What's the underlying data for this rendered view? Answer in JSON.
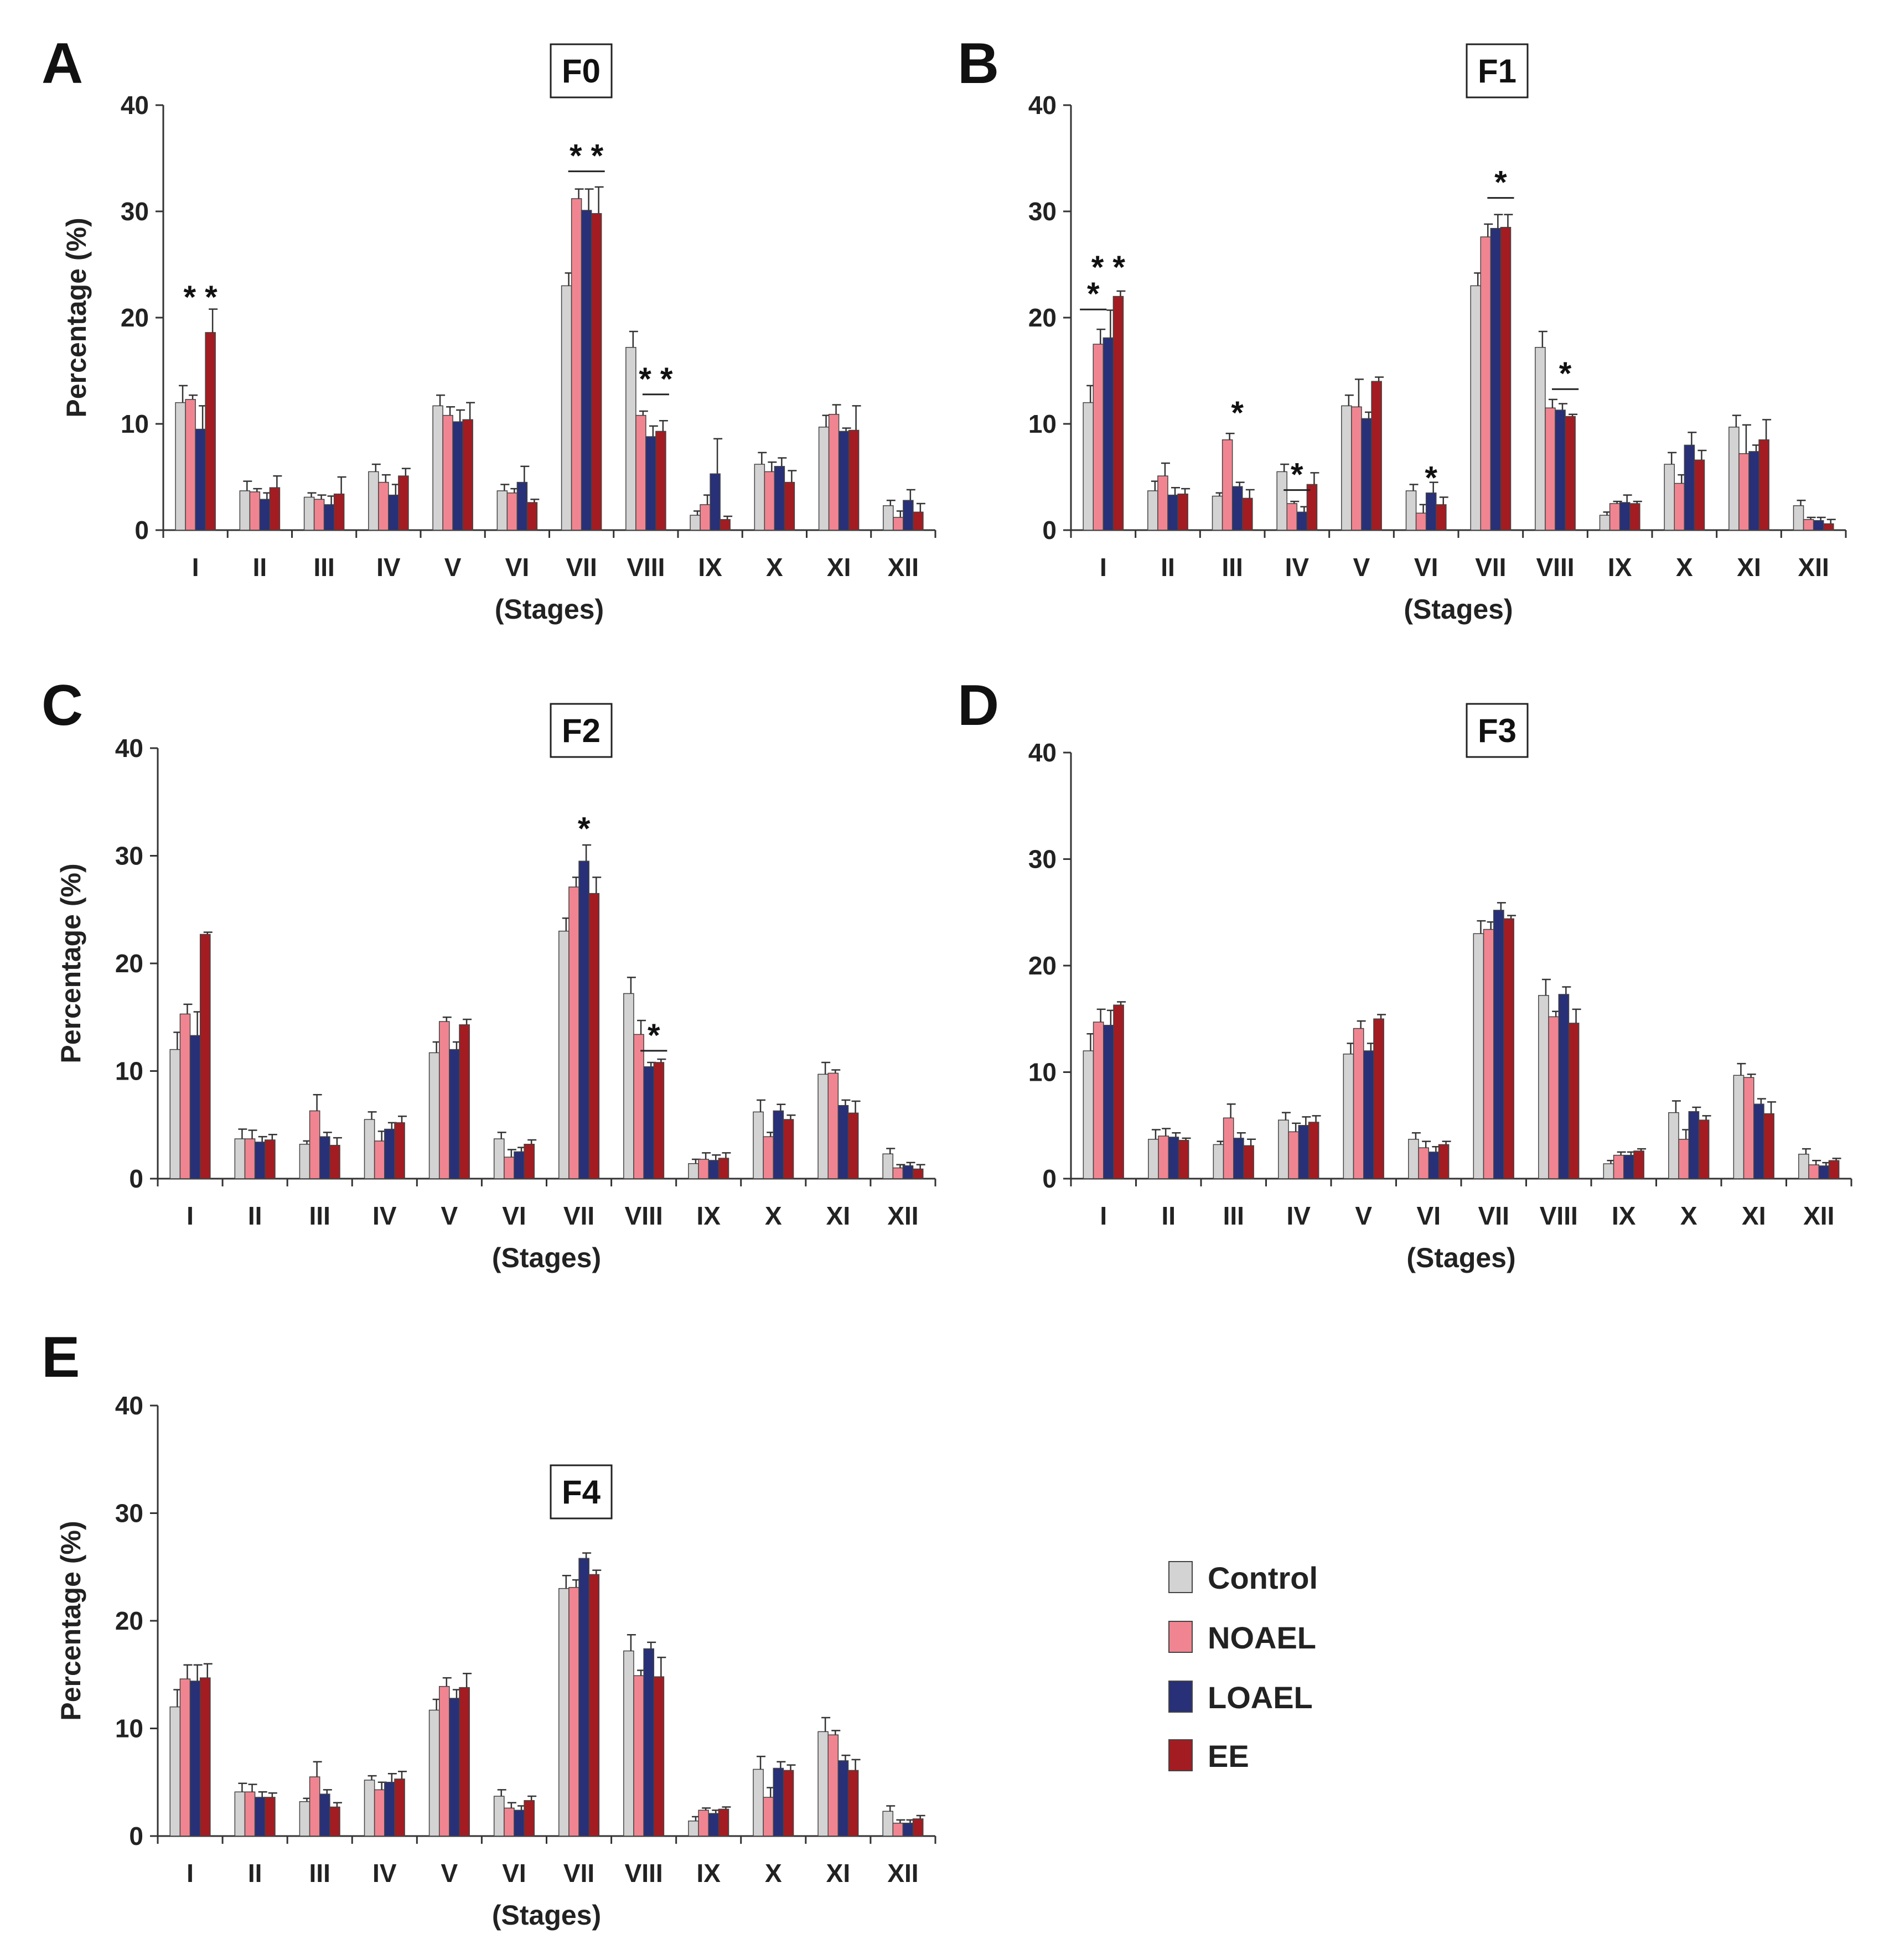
{
  "legend": [
    {
      "name": "Control",
      "color": "#d3d3d3"
    },
    {
      "name": "NOAEL",
      "color": "#f08591"
    },
    {
      "name": "LOAEL",
      "color": "#283078"
    },
    {
      "name": "EE",
      "color": "#a31c22"
    }
  ],
  "chart_data": [
    {
      "panel": "A",
      "title": "F0",
      "type": "bar",
      "ylabel": "Percentage (%)",
      "xlabel": "(Stages)",
      "ylim": [
        0,
        40
      ],
      "yticks": [
        0,
        10,
        20,
        30,
        40
      ],
      "categories": [
        "I",
        "II",
        "III",
        "IV",
        "V",
        "VI",
        "VII",
        "VIII",
        "IX",
        "X",
        "XI",
        "XII"
      ],
      "series": [
        {
          "name": "Control",
          "values": [
            12.0,
            3.7,
            3.1,
            5.5,
            11.7,
            3.7,
            23.0,
            17.2,
            1.4,
            6.2,
            9.7,
            2.3
          ],
          "errors": [
            1.6,
            0.9,
            0.4,
            0.7,
            1.0,
            0.6,
            1.2,
            1.5,
            0.4,
            1.1,
            1.1,
            0.5
          ]
        },
        {
          "name": "NOAEL",
          "values": [
            12.3,
            3.6,
            2.9,
            4.5,
            10.8,
            3.5,
            31.2,
            10.8,
            2.4,
            5.5,
            10.9,
            1.2
          ],
          "errors": [
            0.4,
            0.3,
            0.4,
            0.7,
            0.8,
            0.4,
            0.9,
            0.4,
            0.9,
            0.9,
            0.9,
            0.6
          ]
        },
        {
          "name": "LOAEL",
          "values": [
            9.5,
            2.9,
            2.4,
            3.3,
            10.2,
            4.5,
            30.1,
            8.8,
            5.3,
            6.0,
            9.3,
            2.8
          ],
          "errors": [
            2.2,
            0.6,
            0.8,
            1.0,
            1.1,
            1.5,
            2.0,
            1.0,
            3.3,
            0.8,
            0.3,
            1.0
          ]
        },
        {
          "name": "EE",
          "values": [
            18.6,
            4.0,
            3.4,
            5.1,
            10.4,
            2.6,
            29.8,
            9.3,
            1.0,
            4.5,
            9.4,
            1.7
          ],
          "errors": [
            2.2,
            1.1,
            1.6,
            0.7,
            1.6,
            0.3,
            2.5,
            1.0,
            0.3,
            1.1,
            2.3,
            0.8
          ]
        }
      ],
      "annotations": [
        {
          "category": "I",
          "text": "* *",
          "bar_from": null,
          "bar_to": null,
          "y": 21.2
        },
        {
          "category": "VII",
          "text": "* *",
          "bar_from": 1,
          "bar_to": 3,
          "y": 34.5
        },
        {
          "category": "VIII",
          "text": "* *",
          "bar_from": 2,
          "bar_to": 3,
          "y": 13.5
        }
      ]
    },
    {
      "panel": "B",
      "title": "F1",
      "type": "bar",
      "ylabel": "",
      "xlabel": "(Stages)",
      "ylim": [
        0,
        40
      ],
      "yticks": [
        0,
        10,
        20,
        30,
        40
      ],
      "categories": [
        "I",
        "II",
        "III",
        "IV",
        "V",
        "VI",
        "VII",
        "VIII",
        "IX",
        "X",
        "XI",
        "XII"
      ],
      "series": [
        {
          "name": "Control",
          "values": [
            12.0,
            3.7,
            3.2,
            5.5,
            11.7,
            3.7,
            23.0,
            17.2,
            1.4,
            6.2,
            9.7,
            2.3
          ],
          "errors": [
            1.6,
            0.9,
            0.3,
            0.7,
            1.0,
            0.6,
            1.2,
            1.5,
            0.3,
            1.1,
            1.1,
            0.5
          ]
        },
        {
          "name": "NOAEL",
          "values": [
            17.5,
            5.1,
            8.5,
            2.5,
            11.6,
            1.6,
            27.6,
            11.5,
            2.5,
            4.4,
            7.2,
            1.0
          ],
          "errors": [
            1.4,
            1.2,
            0.6,
            0.2,
            2.6,
            0.8,
            1.2,
            0.8,
            0.2,
            0.8,
            2.7,
            0.2
          ]
        },
        {
          "name": "LOAEL",
          "values": [
            18.1,
            3.3,
            4.1,
            1.7,
            10.5,
            3.5,
            28.4,
            11.3,
            2.6,
            8.0,
            7.4,
            0.9
          ],
          "errors": [
            2.6,
            0.7,
            0.4,
            0.5,
            0.6,
            1.0,
            1.3,
            0.6,
            0.7,
            1.2,
            0.6,
            0.3
          ]
        },
        {
          "name": "EE",
          "values": [
            22.0,
            3.4,
            3.0,
            4.3,
            14.0,
            2.4,
            28.5,
            10.7,
            2.5,
            6.6,
            8.5,
            0.6
          ],
          "errors": [
            0.5,
            0.5,
            0.8,
            1.1,
            0.4,
            0.7,
            1.2,
            0.2,
            0.2,
            0.9,
            1.9,
            0.4
          ]
        }
      ],
      "annotations": [
        {
          "category": "I",
          "text": "*",
          "bar_from": 0,
          "bar_to": 1,
          "y": 21.5
        },
        {
          "category": "I",
          "text": "* *",
          "bar_from": null,
          "bar_to": null,
          "y": 24.0
        },
        {
          "category": "III",
          "text": "*",
          "bar_from": null,
          "bar_to": null,
          "y": 10.3
        },
        {
          "category": "IV",
          "text": "*",
          "bar_from": 1,
          "bar_to": 2,
          "y": 4.5
        },
        {
          "category": "VI",
          "text": "*",
          "bar_from": null,
          "bar_to": null,
          "y": 4.2
        },
        {
          "category": "VII",
          "text": "*",
          "bar_from": 2,
          "bar_to": 3,
          "y": 32.0
        },
        {
          "category": "VIII",
          "text": "*",
          "bar_from": 2,
          "bar_to": 3,
          "y": 14.0
        }
      ]
    },
    {
      "panel": "C",
      "title": "F2",
      "type": "bar",
      "ylabel": "Percentage (%)",
      "xlabel": "(Stages)",
      "ylim": [
        0,
        40
      ],
      "yticks": [
        0,
        10,
        20,
        30,
        40
      ],
      "categories": [
        "I",
        "II",
        "III",
        "IV",
        "V",
        "VI",
        "VII",
        "VIII",
        "IX",
        "X",
        "XI",
        "XII"
      ],
      "series": [
        {
          "name": "Control",
          "values": [
            12.0,
            3.7,
            3.2,
            5.5,
            11.7,
            3.7,
            23.0,
            17.2,
            1.4,
            6.2,
            9.7,
            2.3
          ],
          "errors": [
            1.6,
            0.9,
            0.3,
            0.7,
            1.0,
            0.6,
            1.2,
            1.5,
            0.4,
            1.1,
            1.1,
            0.5
          ]
        },
        {
          "name": "NOAEL",
          "values": [
            15.3,
            3.7,
            6.3,
            3.5,
            14.6,
            2.0,
            27.1,
            13.4,
            1.8,
            3.9,
            9.8,
            1.0
          ],
          "errors": [
            0.9,
            0.8,
            1.5,
            0.9,
            0.4,
            0.7,
            0.9,
            1.3,
            0.6,
            0.4,
            0.3,
            0.3
          ]
        },
        {
          "name": "LOAEL",
          "values": [
            13.3,
            3.4,
            3.9,
            4.6,
            12.0,
            2.5,
            29.5,
            10.4,
            1.7,
            6.3,
            6.8,
            1.2
          ],
          "errors": [
            2.2,
            0.5,
            0.4,
            0.6,
            0.7,
            0.4,
            1.5,
            0.4,
            0.5,
            0.6,
            0.5,
            0.3
          ]
        },
        {
          "name": "EE",
          "values": [
            22.7,
            3.6,
            3.1,
            5.2,
            14.3,
            3.2,
            26.5,
            10.8,
            1.9,
            5.5,
            6.1,
            0.9
          ],
          "errors": [
            0.2,
            0.5,
            0.7,
            0.6,
            0.5,
            0.4,
            1.5,
            0.3,
            0.5,
            0.4,
            1.1,
            0.4
          ]
        }
      ],
      "annotations": [
        {
          "category": "VII",
          "text": "*",
          "bar_from": null,
          "bar_to": null,
          "y": 31.8
        },
        {
          "category": "VIII",
          "text": "*",
          "bar_from": 2,
          "bar_to": 3,
          "y": 12.6
        }
      ]
    },
    {
      "panel": "D",
      "title": "F3",
      "type": "bar",
      "ylabel": "",
      "xlabel": "(Stages)",
      "ylim": [
        0,
        40
      ],
      "yticks": [
        0,
        10,
        20,
        30,
        40
      ],
      "categories": [
        "I",
        "II",
        "III",
        "IV",
        "V",
        "VI",
        "VII",
        "VIII",
        "IX",
        "X",
        "XI",
        "XII"
      ],
      "series": [
        {
          "name": "Control",
          "values": [
            12.0,
            3.7,
            3.2,
            5.5,
            11.7,
            3.7,
            23.0,
            17.2,
            1.4,
            6.2,
            9.7,
            2.3
          ],
          "errors": [
            1.6,
            0.9,
            0.3,
            0.7,
            1.0,
            0.6,
            1.2,
            1.5,
            0.3,
            1.1,
            1.1,
            0.5
          ]
        },
        {
          "name": "NOAEL",
          "values": [
            14.7,
            4.0,
            5.7,
            4.4,
            14.1,
            2.9,
            23.4,
            15.2,
            2.2,
            3.7,
            9.5,
            1.3
          ],
          "errors": [
            1.2,
            0.7,
            1.3,
            0.8,
            0.7,
            0.6,
            0.7,
            0.5,
            0.3,
            0.9,
            0.3,
            0.4
          ]
        },
        {
          "name": "LOAEL",
          "values": [
            14.4,
            3.9,
            3.8,
            5.0,
            12.0,
            2.5,
            25.2,
            17.3,
            2.2,
            6.3,
            7.0,
            1.2
          ],
          "errors": [
            1.4,
            0.4,
            0.5,
            0.8,
            0.7,
            0.5,
            0.7,
            0.7,
            0.3,
            0.4,
            0.5,
            0.3
          ]
        },
        {
          "name": "EE",
          "values": [
            16.3,
            3.6,
            3.1,
            5.3,
            15.0,
            3.2,
            24.4,
            14.6,
            2.6,
            5.5,
            6.1,
            1.7
          ],
          "errors": [
            0.3,
            0.2,
            0.6,
            0.6,
            0.4,
            0.3,
            0.3,
            1.3,
            0.2,
            0.4,
            1.1,
            0.2
          ]
        }
      ],
      "annotations": []
    },
    {
      "panel": "E",
      "title": "F4",
      "type": "bar",
      "ylabel": "Percentage (%)",
      "xlabel": "(Stages)",
      "ylim": [
        0,
        40
      ],
      "yticks": [
        0,
        10,
        20,
        30,
        40
      ],
      "categories": [
        "I",
        "II",
        "III",
        "IV",
        "V",
        "VI",
        "VII",
        "VIII",
        "IX",
        "X",
        "XI",
        "XII"
      ],
      "series": [
        {
          "name": "Control",
          "values": [
            12.0,
            4.1,
            3.2,
            5.2,
            11.7,
            3.7,
            23.0,
            17.2,
            1.4,
            6.2,
            9.7,
            2.3
          ],
          "errors": [
            1.6,
            0.8,
            0.3,
            0.4,
            1.0,
            0.6,
            1.2,
            1.5,
            0.4,
            1.2,
            1.3,
            0.5
          ]
        },
        {
          "name": "NOAEL",
          "values": [
            14.6,
            4.1,
            5.5,
            4.3,
            13.9,
            2.6,
            23.1,
            14.9,
            2.4,
            3.6,
            9.4,
            1.2
          ],
          "errors": [
            1.3,
            0.7,
            1.4,
            0.7,
            0.8,
            0.5,
            0.7,
            0.5,
            0.2,
            0.9,
            0.4,
            0.3
          ]
        },
        {
          "name": "LOAEL",
          "values": [
            14.4,
            3.6,
            3.9,
            5.0,
            12.8,
            2.4,
            25.8,
            17.4,
            2.1,
            6.3,
            7.0,
            1.2
          ],
          "errors": [
            1.5,
            0.5,
            0.4,
            0.8,
            0.8,
            0.4,
            0.5,
            0.6,
            0.3,
            0.6,
            0.5,
            0.3
          ]
        },
        {
          "name": "EE",
          "values": [
            14.7,
            3.6,
            2.7,
            5.3,
            13.8,
            3.3,
            24.3,
            14.8,
            2.5,
            6.1,
            6.1,
            1.6
          ],
          "errors": [
            1.3,
            0.4,
            0.4,
            0.7,
            1.3,
            0.4,
            0.4,
            1.8,
            0.2,
            0.5,
            1.0,
            0.3
          ]
        }
      ],
      "annotations": []
    }
  ]
}
